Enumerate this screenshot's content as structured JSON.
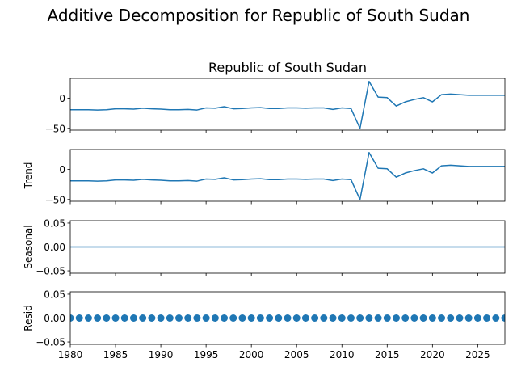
{
  "figure": {
    "suptitle": "Additive Decomposition for Republic of South Sudan"
  },
  "chart_data": [
    {
      "type": "line",
      "title": "Republic of South Sudan",
      "ylabel": "",
      "xlim": [
        1980,
        2028
      ],
      "ylim": [
        -53,
        33
      ],
      "yticks": [
        0,
        -50
      ],
      "ytick_labels": [
        "0",
        "−50"
      ],
      "xtick_labels_visible": false,
      "color": "#1f77b4",
      "x": [
        1980,
        1981,
        1982,
        1983,
        1984,
        1985,
        1986,
        1987,
        1988,
        1989,
        1990,
        1991,
        1992,
        1993,
        1994,
        1995,
        1996,
        1997,
        1998,
        1999,
        2000,
        2001,
        2002,
        2003,
        2004,
        2005,
        2006,
        2007,
        2008,
        2009,
        2010,
        2011,
        2012,
        2013,
        2014,
        2015,
        2016,
        2017,
        2018,
        2019,
        2020,
        2021,
        2022,
        2023,
        2024,
        2025,
        2026,
        2027,
        2028
      ],
      "values": [
        -19,
        -19,
        -19,
        -19.5,
        -19,
        -17.5,
        -17.5,
        -18,
        -16.5,
        -17.5,
        -18,
        -19,
        -19,
        -18.5,
        -19.5,
        -16,
        -16.5,
        -14,
        -17.5,
        -17,
        -16,
        -15.5,
        -17,
        -17,
        -16,
        -16,
        -16.5,
        -16,
        -16,
        -18.5,
        -16,
        -17,
        -50,
        28,
        2,
        1,
        -13,
        -6,
        -2,
        1,
        -6,
        6,
        7,
        6,
        5,
        5,
        5,
        5,
        5
      ]
    },
    {
      "type": "line",
      "title": "",
      "ylabel": "Trend",
      "xlim": [
        1980,
        2028
      ],
      "ylim": [
        -53,
        33
      ],
      "yticks": [
        0,
        -50
      ],
      "ytick_labels": [
        "0",
        "−50"
      ],
      "xtick_labels_visible": false,
      "color": "#1f77b4",
      "x": [
        1980,
        1981,
        1982,
        1983,
        1984,
        1985,
        1986,
        1987,
        1988,
        1989,
        1990,
        1991,
        1992,
        1993,
        1994,
        1995,
        1996,
        1997,
        1998,
        1999,
        2000,
        2001,
        2002,
        2003,
        2004,
        2005,
        2006,
        2007,
        2008,
        2009,
        2010,
        2011,
        2012,
        2013,
        2014,
        2015,
        2016,
        2017,
        2018,
        2019,
        2020,
        2021,
        2022,
        2023,
        2024,
        2025,
        2026,
        2027,
        2028
      ],
      "values": [
        -19,
        -19,
        -19,
        -19.5,
        -19,
        -17.5,
        -17.5,
        -18,
        -16.5,
        -17.5,
        -18,
        -19,
        -19,
        -18.5,
        -19.5,
        -16,
        -16.5,
        -14,
        -17.5,
        -17,
        -16,
        -15.5,
        -17,
        -17,
        -16,
        -16,
        -16.5,
        -16,
        -16,
        -18.5,
        -16,
        -17,
        -50,
        28,
        2,
        1,
        -13,
        -6,
        -2,
        1,
        -6,
        6,
        7,
        6,
        5,
        5,
        5,
        5,
        5
      ]
    },
    {
      "type": "line",
      "title": "",
      "ylabel": "Seasonal",
      "xlim": [
        1980,
        2028
      ],
      "ylim": [
        -0.055,
        0.055
      ],
      "yticks": [
        0.05,
        0.0,
        -0.05
      ],
      "ytick_labels": [
        "0.05",
        "0.00",
        "−0.05"
      ],
      "xtick_labels_visible": false,
      "color": "#1f77b4",
      "x": [
        1980,
        2028
      ],
      "values": [
        0,
        0
      ]
    },
    {
      "type": "scatter",
      "title": "",
      "ylabel": "Resid",
      "xlim": [
        1980,
        2028
      ],
      "ylim": [
        -0.055,
        0.055
      ],
      "yticks": [
        0.05,
        0.0,
        -0.05
      ],
      "ytick_labels": [
        "0.05",
        "0.00",
        "−0.05"
      ],
      "xticks": [
        1980,
        1985,
        1990,
        1995,
        2000,
        2005,
        2010,
        2015,
        2020,
        2025
      ],
      "xtick_labels": [
        "1980",
        "1985",
        "1990",
        "1995",
        "2000",
        "2005",
        "2010",
        "2015",
        "2020",
        "2025"
      ],
      "xtick_labels_visible": true,
      "color": "#1f77b4",
      "x": [
        1980,
        1981,
        1982,
        1983,
        1984,
        1985,
        1986,
        1987,
        1988,
        1989,
        1990,
        1991,
        1992,
        1993,
        1994,
        1995,
        1996,
        1997,
        1998,
        1999,
        2000,
        2001,
        2002,
        2003,
        2004,
        2005,
        2006,
        2007,
        2008,
        2009,
        2010,
        2011,
        2012,
        2013,
        2014,
        2015,
        2016,
        2017,
        2018,
        2019,
        2020,
        2021,
        2022,
        2023,
        2024,
        2025,
        2026,
        2027,
        2028
      ],
      "values": [
        0,
        0,
        0,
        0,
        0,
        0,
        0,
        0,
        0,
        0,
        0,
        0,
        0,
        0,
        0,
        0,
        0,
        0,
        0,
        0,
        0,
        0,
        0,
        0,
        0,
        0,
        0,
        0,
        0,
        0,
        0,
        0,
        0,
        0,
        0,
        0,
        0,
        0,
        0,
        0,
        0,
        0,
        0,
        0,
        0,
        0,
        0,
        0,
        0
      ]
    }
  ]
}
